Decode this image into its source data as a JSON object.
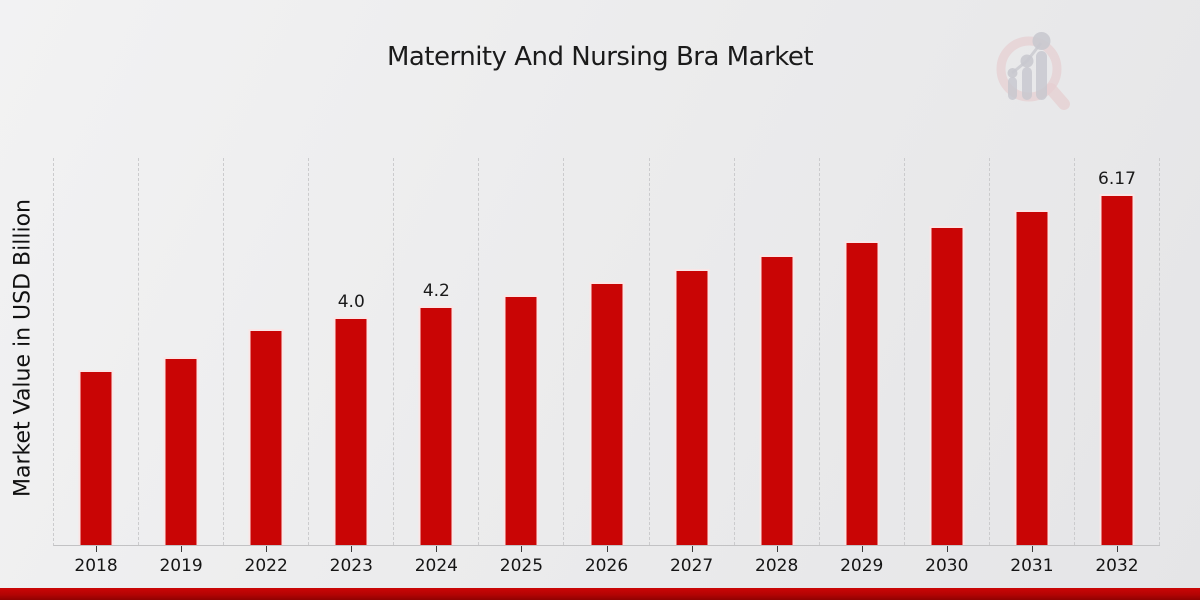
{
  "title": "Maternity And Nursing Bra Market",
  "y_axis_label": "Market Value in USD Billion",
  "watermark": {
    "icon": "magnifier-bar-chart-logo"
  },
  "chart_data": {
    "type": "bar",
    "title": "Maternity And Nursing Bra Market",
    "xlabel": "",
    "ylabel": "Market Value in USD Billion",
    "categories": [
      "2018",
      "2019",
      "2022",
      "2023",
      "2024",
      "2025",
      "2026",
      "2027",
      "2028",
      "2029",
      "2030",
      "2031",
      "2032"
    ],
    "values": [
      3.08,
      3.3,
      3.79,
      4.0,
      4.2,
      4.4,
      4.62,
      4.85,
      5.09,
      5.34,
      5.6,
      5.88,
      6.17
    ],
    "data_labels": [
      "",
      "",
      "",
      "4.0",
      "4.2",
      "",
      "",
      "",
      "",
      "",
      "",
      "",
      "6.17"
    ],
    "ylim": [
      0,
      6.8
    ],
    "grid": "vertical-dashed",
    "legend": "none",
    "bar_color": "#c90505"
  },
  "colors": {
    "bar": "#c90505",
    "banner": "#b30404",
    "gridline": "#cbcbcd",
    "background": "#ececed"
  }
}
